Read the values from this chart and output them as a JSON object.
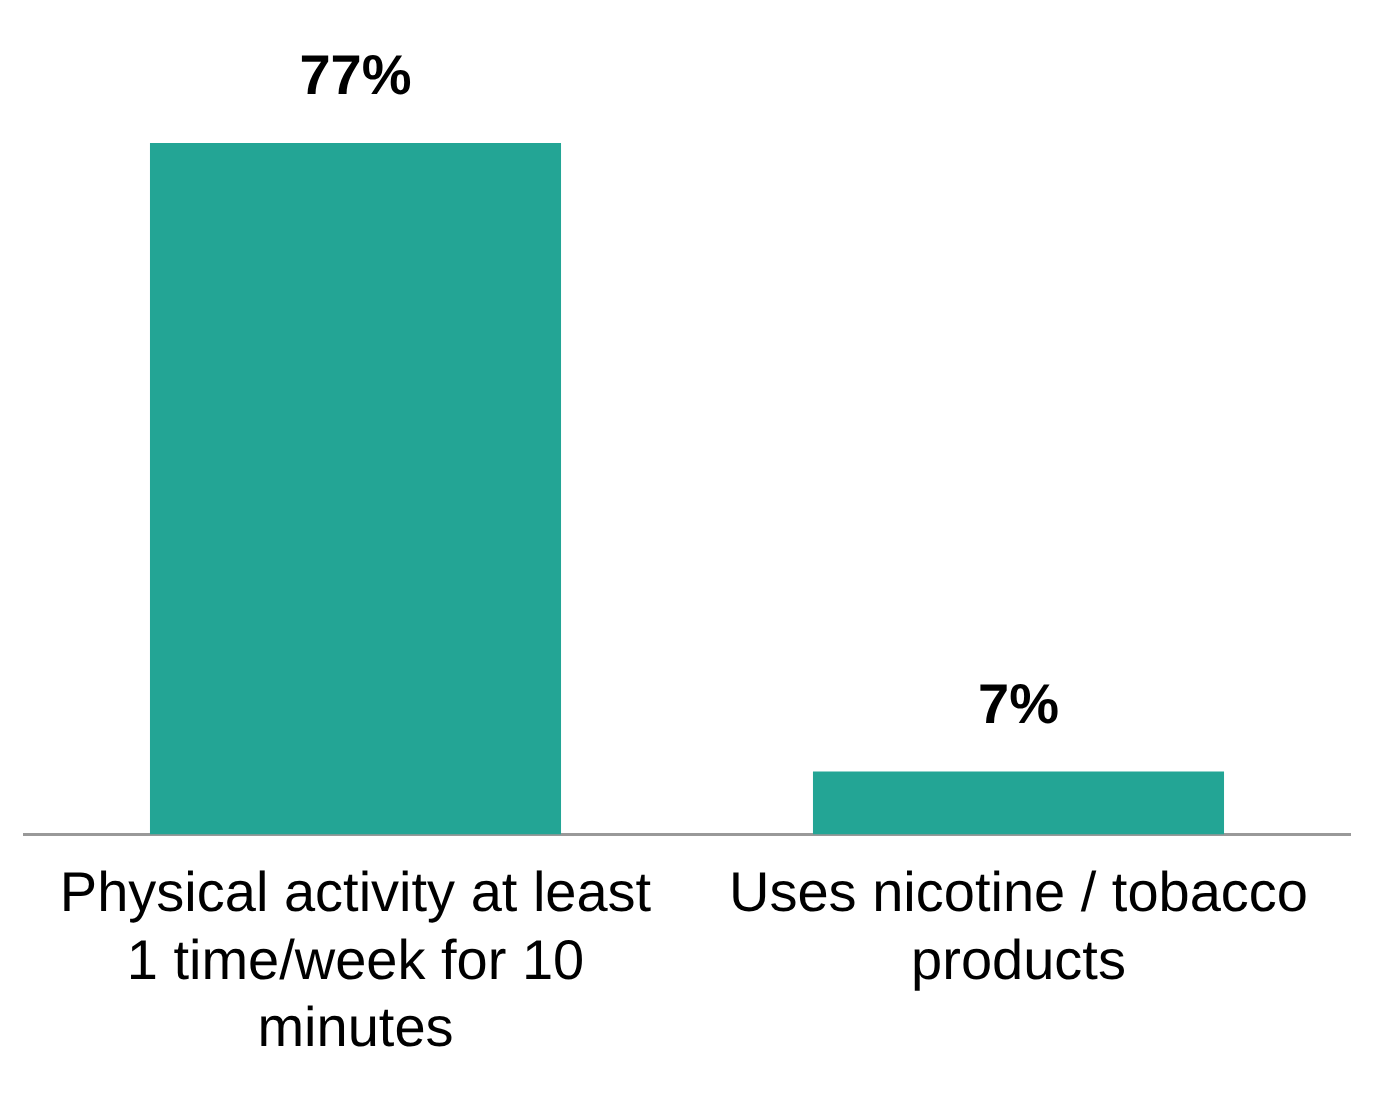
{
  "chart_data": {
    "type": "bar",
    "categories": [
      "Physical activity at least 1 time/week for 10 minutes",
      "Uses nicotine / tobacco products"
    ],
    "values": [
      77,
      7
    ],
    "value_labels": [
      "77%",
      "7%"
    ],
    "color": "#23a595",
    "grid": false,
    "legend": false
  }
}
